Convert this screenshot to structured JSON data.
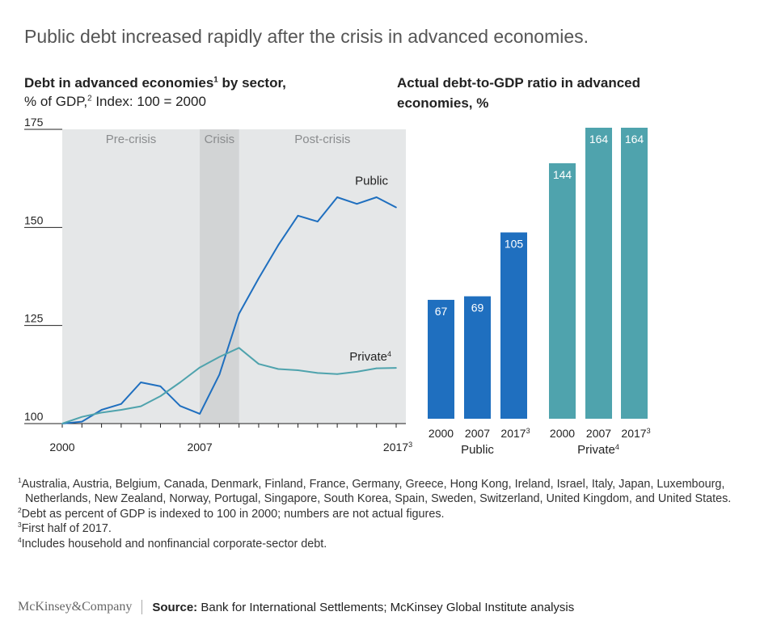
{
  "title": "Public debt increased rapidly after the crisis in advanced economies.",
  "left_chart": {
    "title_main": "Debt in advanced economies",
    "title_sup": "1",
    "title_tail": " by sector,",
    "subtitle_a": "% of GDP,",
    "subtitle_sup": "2",
    "subtitle_b": " Index: 100 = 2000"
  },
  "right_chart": {
    "title_line1": "Actual debt-to-GDP ratio in advanced",
    "title_line2": "economies, %"
  },
  "colors": {
    "public": "#1f6fbf",
    "private": "#4fa3ad",
    "panel": "#e5e7e8",
    "crisis": "#d2d4d5"
  },
  "chart_data": [
    {
      "type": "line",
      "ylim": [
        100,
        175
      ],
      "yticks": [
        100,
        125,
        150,
        175
      ],
      "xlim": [
        2000,
        2017
      ],
      "xtick_labels": [
        "2000",
        "2007",
        "2017"
      ],
      "xtick_last_sup": "3",
      "periods": [
        {
          "label": "Pre-crisis"
        },
        {
          "label": "Crisis",
          "start": 2007,
          "end": 2009
        },
        {
          "label": "Post-crisis"
        }
      ],
      "series": [
        {
          "name": "Public",
          "label_sup": "",
          "x": [
            2000,
            2001,
            2002,
            2003,
            2004,
            2005,
            2006,
            2007,
            2008,
            2009,
            2010,
            2011,
            2012,
            2013,
            2014,
            2015,
            2016,
            2017
          ],
          "values": [
            100,
            100.5,
            103.5,
            105,
            110.5,
            109.5,
            104.5,
            102.5,
            112.5,
            128,
            137,
            145.5,
            153,
            151.5,
            157.7,
            156,
            157.7,
            155.1
          ]
        },
        {
          "name": "Private",
          "label_sup": "4",
          "x": [
            2000,
            2001,
            2002,
            2003,
            2004,
            2005,
            2006,
            2007,
            2008,
            2009,
            2010,
            2011,
            2012,
            2013,
            2014,
            2015,
            2016,
            2017
          ],
          "values": [
            100,
            101.7,
            102.8,
            103.5,
            104.4,
            107,
            110.5,
            114.3,
            117,
            119.3,
            115.2,
            113.9,
            113.6,
            112.9,
            112.6,
            113.2,
            114.1,
            114.2
          ]
        }
      ]
    },
    {
      "type": "bar",
      "groups": [
        {
          "name": "Public",
          "name_sup": "",
          "categories": [
            "2000",
            "2007",
            "2017"
          ],
          "category_sups": [
            "",
            "",
            "3"
          ],
          "values": [
            67,
            69,
            105
          ]
        },
        {
          "name": "Private",
          "name_sup": "4",
          "categories": [
            "2000",
            "2007",
            "2017"
          ],
          "category_sups": [
            "",
            "",
            "3"
          ],
          "values": [
            144,
            164,
            164
          ]
        }
      ]
    }
  ],
  "footnotes": [
    {
      "sup": "1",
      "text": "Australia, Austria, Belgium, Canada, Denmark, Finland, France, Germany, Greece, Hong Kong, Ireland, Israel, Italy, Japan, Luxembourg, Netherlands, New Zealand, Norway, Portugal, Singapore, South Korea, Spain, Sweden, Switzerland, United Kingdom, and United States."
    },
    {
      "sup": "2",
      "text": "Debt as percent of GDP is indexed to 100 in 2000; numbers are not actual figures."
    },
    {
      "sup": "3",
      "text": "First half of 2017."
    },
    {
      "sup": "4",
      "text": "Includes household and nonfinancial corporate-sector debt."
    }
  ],
  "footer": {
    "logo": "McKinsey&Company",
    "source_label": "Source:",
    "source_text": " Bank for International Settlements; McKinsey Global Institute analysis"
  }
}
